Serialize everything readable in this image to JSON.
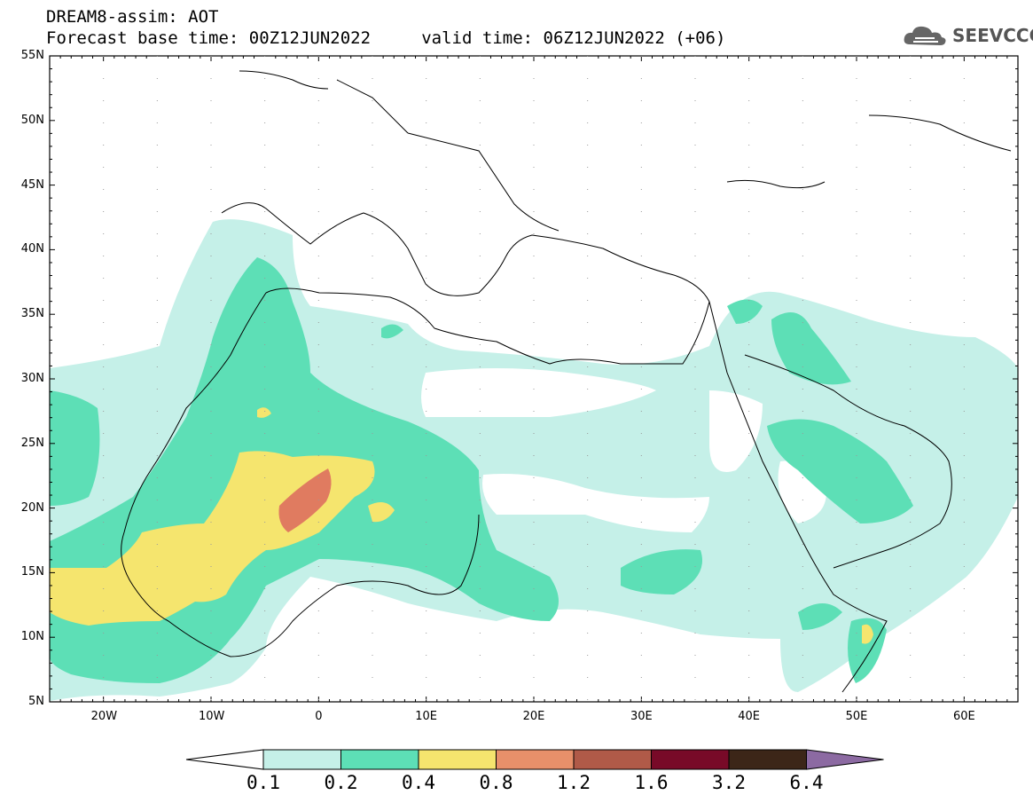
{
  "header": {
    "title": "DREAM8-assim: AOT",
    "subtitle": "Forecast base time: 00Z12JUN2022     valid time: 06Z12JUN2022 (+06)"
  },
  "logo": {
    "text": "SEEVCCC",
    "icon": "cloud-icon"
  },
  "map": {
    "lat_labels": [
      "55N",
      "50N",
      "45N",
      "40N",
      "35N",
      "30N",
      "25N",
      "20N",
      "15N",
      "10N",
      "5N"
    ],
    "lon_labels": [
      "20W",
      "10W",
      "0",
      "10E",
      "20E",
      "30E",
      "40E",
      "50E",
      "60E"
    ],
    "lon_range": [
      -25,
      65
    ],
    "lat_range": [
      5,
      55
    ]
  },
  "colorbar": {
    "labels": [
      "0.1",
      "0.2",
      "0.4",
      "0.8",
      "1.2",
      "1.6",
      "3.2",
      "6.4"
    ],
    "colors": [
      "#ffffff",
      "#c5f0e8",
      "#5ddfb6",
      "#f5e56e",
      "#e8906a",
      "#b05a48",
      "#780a28",
      "#3c2618",
      "#8c6aa2"
    ]
  },
  "colors": {
    "c1": "#c5f0e8",
    "c2": "#5ddfb6",
    "c3": "#f5e56e",
    "c4": "#e07b60"
  }
}
